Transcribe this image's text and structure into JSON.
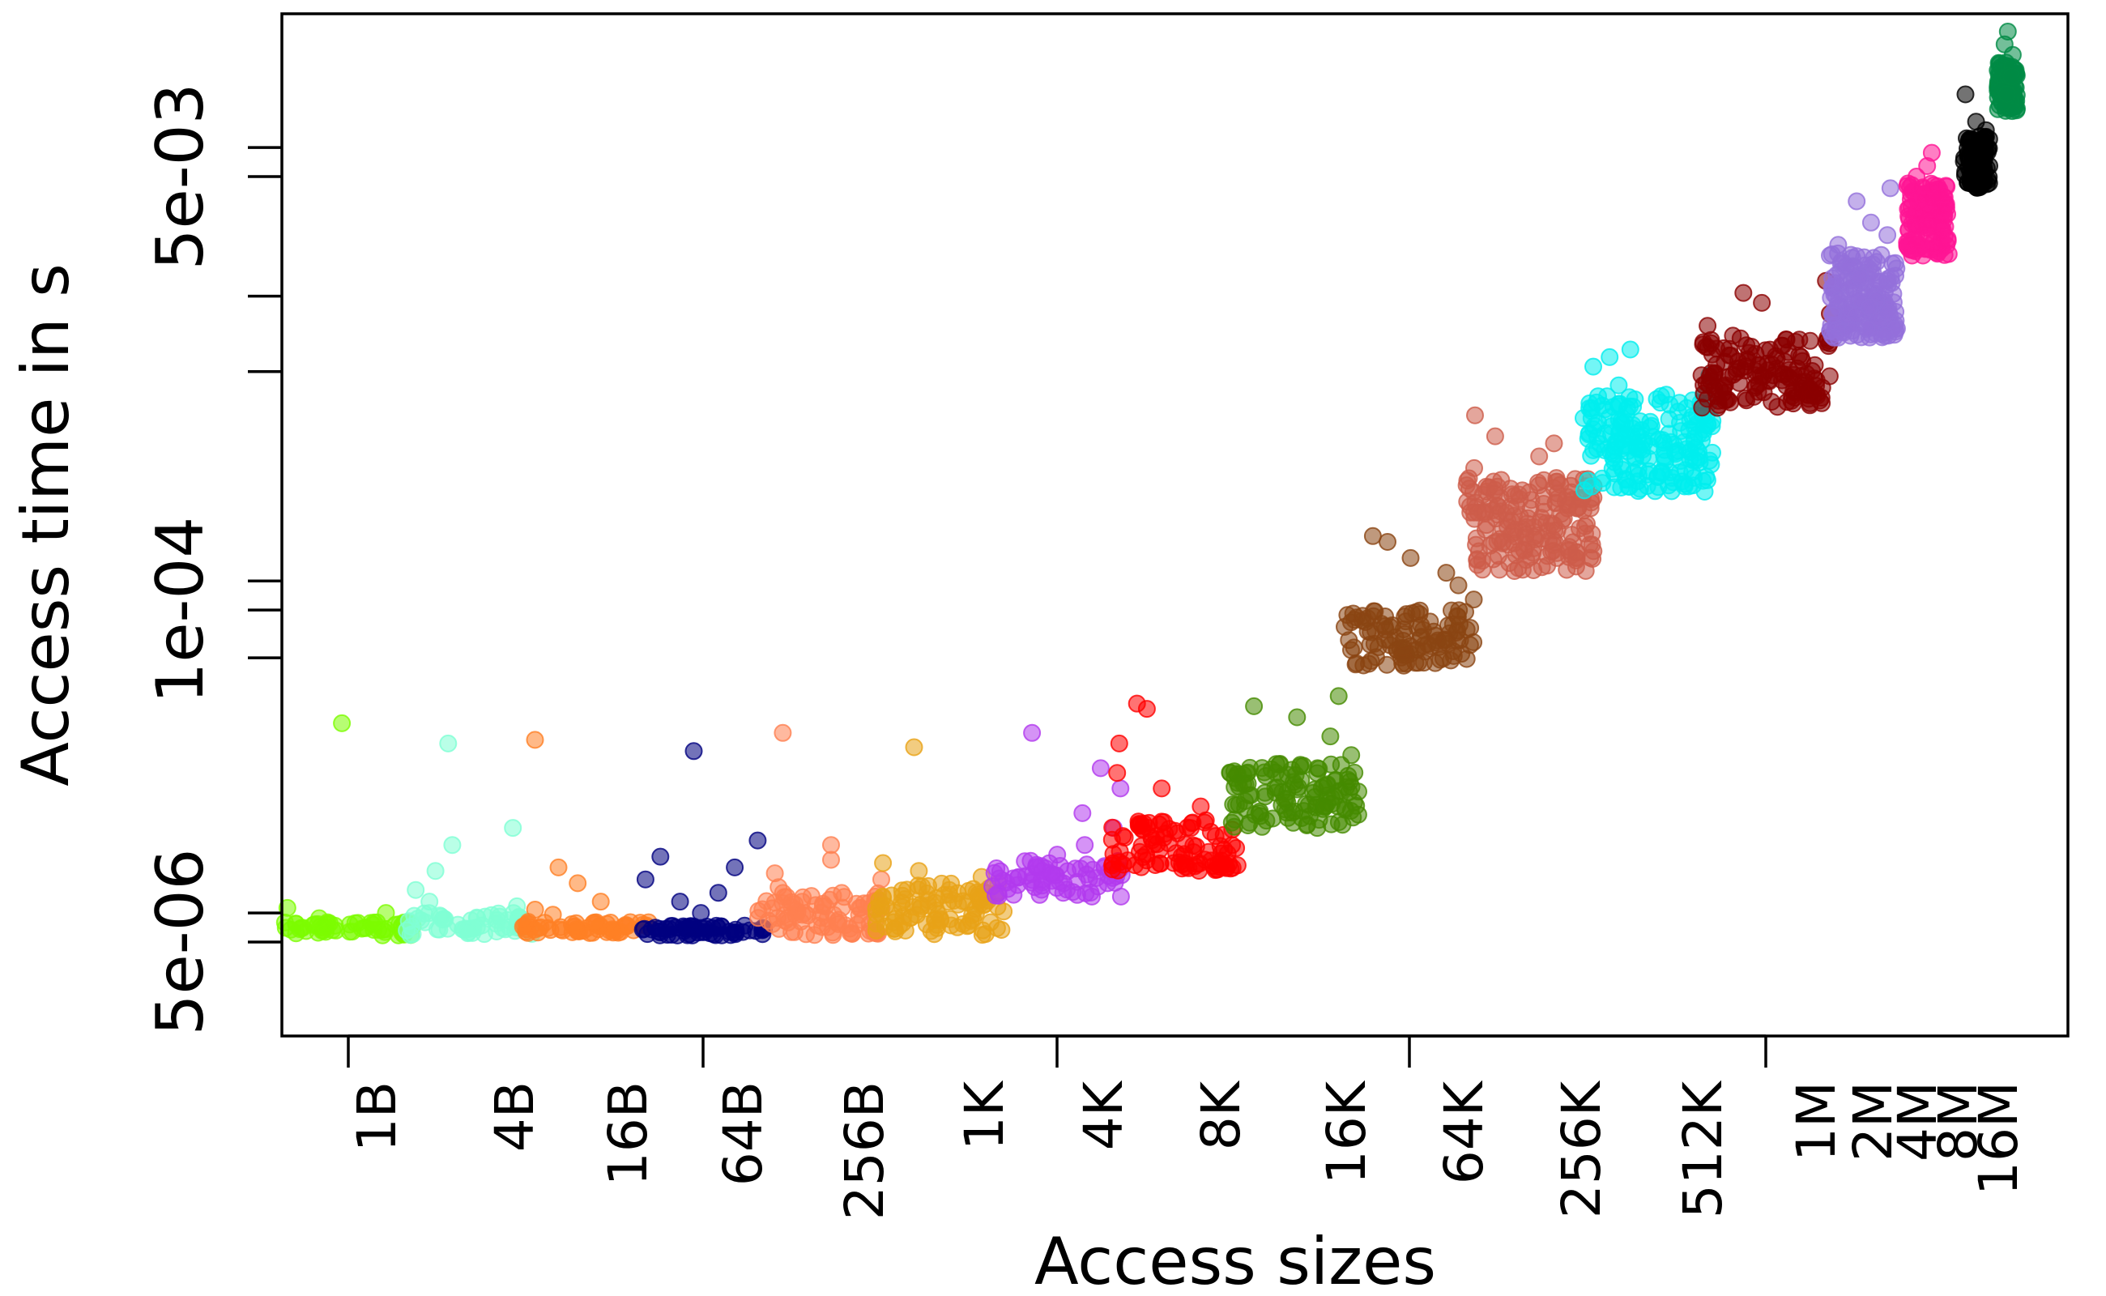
{
  "chart_data": {
    "type": "scatter",
    "xlabel": "Access sizes",
    "ylabel": "Access time in s",
    "y_scale": "log",
    "ylim": [
      4.2e-06,
      0.03
    ],
    "y_tick_labels": [
      "5e-06",
      "1e-04",
      "5e-03"
    ],
    "y_tick_values": [
      5e-06,
      0.0001,
      0.005
    ],
    "y_minor_ticks": [
      6.5e-06,
      6.5e-05,
      0.00013,
      0.00086,
      0.0017,
      0.0065
    ],
    "categories": [
      "1B",
      "4B",
      "16B",
      "64B",
      "256B",
      "1K",
      "4K",
      "8K",
      "16K",
      "64K",
      "256K",
      "512K",
      "1M",
      "2M",
      "4M",
      "8M",
      "16M"
    ],
    "x_ticks_marked": [
      "1B",
      "64B",
      "4K",
      "64K",
      "1M"
    ],
    "grid": false,
    "series": [
      {
        "category": "1B",
        "color": "#7CFC00",
        "base_low": 5.3e-06,
        "base_high": 6e-06,
        "outliers": [
          6.2e-06,
          6.5e-06,
          6.8e-06,
          3.6e-05
        ]
      },
      {
        "category": "4B",
        "color": "#7FFFD4",
        "base_low": 5.3e-06,
        "base_high": 6.5e-06,
        "outliers": [
          6.9e-06,
          7.2e-06,
          8e-06,
          9.5e-06,
          1.2e-05,
          1.4e-05,
          3e-05
        ]
      },
      {
        "category": "16B",
        "color": "#FF7F24",
        "base_low": 5.4e-06,
        "base_high": 6e-06,
        "outliers": [
          6.4e-06,
          6.7e-06,
          7.2e-06,
          8.5e-06,
          9.8e-06,
          3.1e-05
        ]
      },
      {
        "category": "64B",
        "color": "#000080",
        "base_low": 5.3e-06,
        "base_high": 5.8e-06,
        "outliers": [
          6.5e-06,
          7.2e-06,
          7.8e-06,
          8.8e-06,
          9.8e-06,
          1.08e-05,
          1.25e-05,
          2.8e-05
        ]
      },
      {
        "category": "256B",
        "color": "#FF7F50",
        "base_low": 5.3e-06,
        "base_high": 7.8e-06,
        "outliers": [
          8.2e-06,
          8.8e-06,
          9.3e-06,
          1.05e-05,
          1.2e-05,
          3.3e-05
        ]
      },
      {
        "category": "1K",
        "color": "#E8A317",
        "base_low": 5.3e-06,
        "base_high": 8.5e-06,
        "outliers": [
          9e-06,
          9.5e-06,
          1.02e-05,
          2.9e-05
        ]
      },
      {
        "category": "4K",
        "color": "#B23AEE",
        "base_low": 7.5e-06,
        "base_high": 1.05e-05,
        "outliers": [
          1.1e-05,
          1.2e-05,
          1.4e-05,
          1.6e-05,
          2e-05,
          2.4e-05,
          3.3e-05
        ]
      },
      {
        "category": "8K",
        "color": "#FF0000",
        "base_low": 9.5e-06,
        "base_high": 1.5e-05,
        "outliers": [
          1.7e-05,
          2e-05,
          2.3e-05,
          3e-05,
          4.1e-05,
          4.3e-05
        ]
      },
      {
        "category": "16K",
        "color": "#458B00",
        "base_low": 1.4e-05,
        "base_high": 2.5e-05,
        "outliers": [
          2.7e-05,
          3.2e-05,
          3.8e-05,
          4.2e-05,
          4.6e-05
        ]
      },
      {
        "category": "64K",
        "color": "#8B4513",
        "base_low": 6e-05,
        "base_high": 0.0001,
        "outliers": [
          0.00011,
          0.000125,
          0.00014,
          0.00016,
          0.000185,
          0.000195
        ]
      },
      {
        "category": "256K",
        "color": "#CD5C4A",
        "base_low": 0.00014,
        "base_high": 0.00033,
        "outliers": [
          0.00036,
          0.0004,
          0.00045,
          0.00048,
          0.00058
        ]
      },
      {
        "category": "512K",
        "color": "#00EEEE",
        "base_low": 0.00029,
        "base_high": 0.0007,
        "outliers": [
          0.00076,
          0.00083,
          0.0009,
          0.00098,
          0.00105
        ]
      },
      {
        "category": "1M",
        "color": "#8B0000",
        "base_low": 0.00062,
        "base_high": 0.0012,
        "outliers": [
          0.0013,
          0.00145,
          0.0016,
          0.00175,
          0.00195
        ]
      },
      {
        "category": "2M",
        "color": "#9370DB",
        "base_low": 0.00115,
        "base_high": 0.0025,
        "outliers": [
          0.0027,
          0.00295,
          0.0033,
          0.004,
          0.0045
        ]
      },
      {
        "category": "4M",
        "color": "#FF1493",
        "base_low": 0.00245,
        "base_high": 0.0047,
        "outliers": [
          0.005,
          0.0055,
          0.0062
        ]
      },
      {
        "category": "8M",
        "color": "#000000",
        "base_low": 0.0045,
        "base_high": 0.0072,
        "outliers": [
          0.0076,
          0.0082,
          0.0105
        ]
      },
      {
        "category": "16M",
        "color": "#008B45",
        "base_low": 0.009,
        "base_high": 0.014,
        "outliers": [
          0.015,
          0.0165,
          0.0185
        ]
      }
    ]
  }
}
